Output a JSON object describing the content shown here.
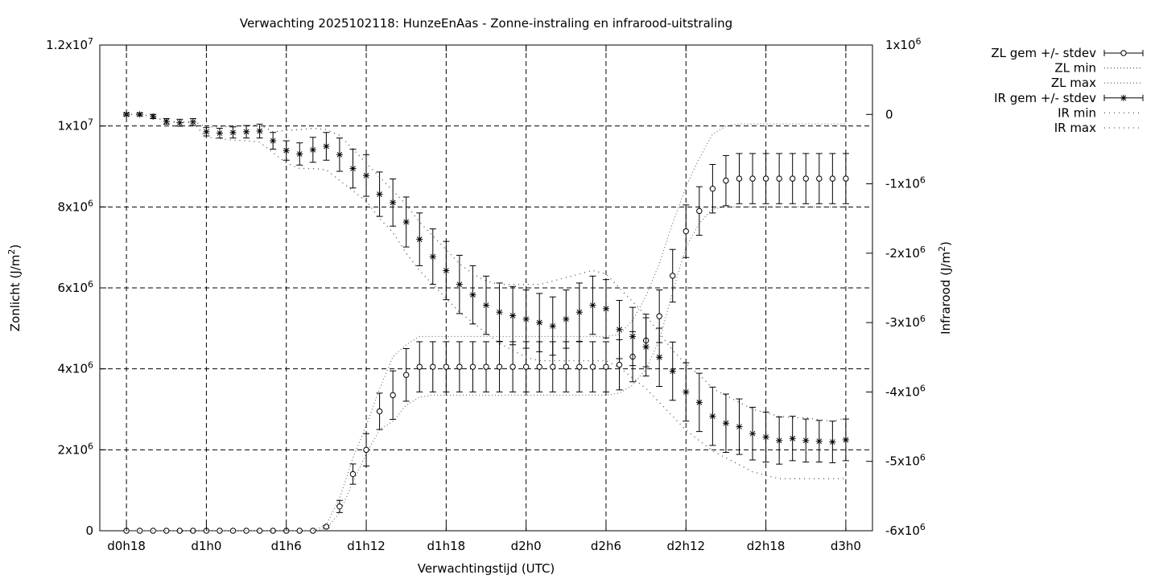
{
  "chart_data": {
    "type": "line",
    "title": "Verwachting 2025102118: HunzeEnAas - Zonne-instraling en infrarood-uitstraling",
    "xlabel": "Verwachtingstijd (UTC)",
    "ylabel_left": {
      "base": "Zonlicht (J/m",
      "sup": "2",
      "tail": ")"
    },
    "ylabel_right": {
      "base": "Infrarood (J/m",
      "sup": "2",
      "tail": ")"
    },
    "x_tick_labels": [
      "d0h18",
      "d1h0",
      "d1h6",
      "d1h12",
      "d1h18",
      "d2h0",
      "d2h6",
      "d2h12",
      "d2h18",
      "d3h0"
    ],
    "x_tick_hours": [
      18,
      24,
      30,
      36,
      42,
      48,
      54,
      60,
      66,
      72
    ],
    "xlim_hours": [
      16,
      74
    ],
    "ylim_left": [
      0,
      12000000
    ],
    "ylim_right": [
      -6000000,
      1000000
    ],
    "y_left_ticks": [
      {
        "value": 0,
        "base": "0",
        "sup": ""
      },
      {
        "value": 2000000,
        "base": "2x10",
        "sup": "6"
      },
      {
        "value": 4000000,
        "base": "4x10",
        "sup": "6"
      },
      {
        "value": 6000000,
        "base": "6x10",
        "sup": "6"
      },
      {
        "value": 8000000,
        "base": "8x10",
        "sup": "6"
      },
      {
        "value": 10000000,
        "base": "1x10",
        "sup": "7"
      },
      {
        "value": 12000000,
        "base": "1.2x10",
        "sup": "7"
      }
    ],
    "y_right_ticks": [
      {
        "value": 1000000,
        "base": "1x10",
        "sup": "6"
      },
      {
        "value": 0,
        "base": "0",
        "sup": ""
      },
      {
        "value": -1000000,
        "base": "-1x10",
        "sup": "6"
      },
      {
        "value": -2000000,
        "base": "-2x10",
        "sup": "6"
      },
      {
        "value": -3000000,
        "base": "-3x10",
        "sup": "6"
      },
      {
        "value": -4000000,
        "base": "-4x10",
        "sup": "6"
      },
      {
        "value": -5000000,
        "base": "-5x10",
        "sup": "6"
      },
      {
        "value": -6000000,
        "base": "-6x10",
        "sup": "6"
      }
    ],
    "grid": true,
    "legend_position": "outside-top-right",
    "x_hours": [
      18,
      19,
      20,
      21,
      22,
      23,
      24,
      25,
      26,
      27,
      28,
      29,
      30,
      31,
      32,
      33,
      34,
      35,
      36,
      37,
      38,
      39,
      40,
      41,
      42,
      43,
      44,
      45,
      46,
      47,
      48,
      49,
      50,
      51,
      52,
      53,
      54,
      55,
      56,
      57,
      58,
      59,
      60,
      61,
      62,
      63,
      64,
      65,
      66,
      67,
      68,
      69,
      70,
      71,
      72
    ],
    "series": [
      {
        "name": "ZL gem +/- stdev",
        "axis": "left",
        "marker": "circle",
        "values": [
          0,
          0,
          0,
          0,
          0,
          0,
          0,
          0,
          0,
          0,
          0,
          0,
          0,
          0,
          0,
          100000,
          600000,
          1400000,
          2000000,
          2950000,
          3350000,
          3850000,
          4050000,
          4050000,
          4050000,
          4050000,
          4050000,
          4050000,
          4050000,
          4050000,
          4050000,
          4050000,
          4050000,
          4050000,
          4050000,
          4050000,
          4050000,
          4100000,
          4300000,
          4700000,
          5300000,
          6300000,
          7400000,
          7900000,
          8450000,
          8650000,
          8700000,
          8700000,
          8700000,
          8700000,
          8700000,
          8700000,
          8700000,
          8700000,
          8700000
        ],
        "stdev": [
          0,
          0,
          0,
          0,
          0,
          0,
          0,
          0,
          0,
          0,
          0,
          0,
          0,
          0,
          0,
          30000,
          150000,
          250000,
          400000,
          450000,
          600000,
          650000,
          620000,
          620000,
          620000,
          620000,
          620000,
          620000,
          620000,
          620000,
          620000,
          620000,
          620000,
          620000,
          620000,
          620000,
          620000,
          620000,
          620000,
          650000,
          650000,
          650000,
          650000,
          600000,
          600000,
          620000,
          620000,
          620000,
          620000,
          620000,
          620000,
          620000,
          620000,
          620000,
          620000
        ]
      },
      {
        "name": "ZL min",
        "axis": "left",
        "values": [
          0,
          0,
          0,
          0,
          0,
          0,
          0,
          0,
          0,
          0,
          0,
          0,
          0,
          0,
          0,
          50000,
          450000,
          1200000,
          1900000,
          2500000,
          2700000,
          3100000,
          3300000,
          3350000,
          3350000,
          3350000,
          3350000,
          3350000,
          3350000,
          3350000,
          3350000,
          3350000,
          3350000,
          3350000,
          3350000,
          3350000,
          3350000,
          3400000,
          3600000,
          4000000,
          4700000,
          5900000,
          7000000,
          7600000,
          7950000,
          8000000,
          8000000,
          8000000,
          8000000,
          8000000,
          8000000,
          8000000,
          8000000,
          8000000,
          8000000
        ]
      },
      {
        "name": "ZL max",
        "axis": "left",
        "values": [
          0,
          0,
          0,
          0,
          0,
          0,
          0,
          0,
          0,
          0,
          0,
          0,
          0,
          0,
          0,
          150000,
          800000,
          1800000,
          2600000,
          3500000,
          4300000,
          4600000,
          4800000,
          4800000,
          4800000,
          4800000,
          4800000,
          4800000,
          4800000,
          4800000,
          4800000,
          4800000,
          4800000,
          4800000,
          4800000,
          4800000,
          4800000,
          4850000,
          5200000,
          5800000,
          6600000,
          7600000,
          8500000,
          9200000,
          9800000,
          10000000,
          10050000,
          10050000,
          10050000,
          10050000,
          10050000,
          10050000,
          10050000,
          10050000,
          10050000
        ]
      },
      {
        "name": "IR gem +/- stdev",
        "axis": "right",
        "marker": "star",
        "values": [
          0,
          0,
          -30000,
          -100000,
          -120000,
          -110000,
          -250000,
          -270000,
          -260000,
          -250000,
          -240000,
          -380000,
          -520000,
          -570000,
          -510000,
          -460000,
          -580000,
          -780000,
          -880000,
          -1150000,
          -1270000,
          -1550000,
          -1800000,
          -2050000,
          -2250000,
          -2450000,
          -2600000,
          -2750000,
          -2850000,
          -2900000,
          -2950000,
          -3000000,
          -3050000,
          -2950000,
          -2850000,
          -2750000,
          -2800000,
          -3100000,
          -3200000,
          -3350000,
          -3500000,
          -3700000,
          -4000000,
          -4150000,
          -4350000,
          -4450000,
          -4500000,
          -4600000,
          -4650000,
          -4700000,
          -4670000,
          -4700000,
          -4710000,
          -4720000,
          -4690000
        ],
        "stdev": [
          20000,
          20000,
          30000,
          40000,
          50000,
          50000,
          60000,
          70000,
          80000,
          90000,
          100000,
          120000,
          140000,
          160000,
          180000,
          200000,
          240000,
          280000,
          300000,
          320000,
          340000,
          360000,
          380000,
          400000,
          420000,
          420000,
          420000,
          420000,
          420000,
          420000,
          420000,
          420000,
          420000,
          420000,
          420000,
          420000,
          420000,
          420000,
          420000,
          420000,
          420000,
          420000,
          420000,
          420000,
          420000,
          420000,
          400000,
          380000,
          360000,
          340000,
          320000,
          310000,
          300000,
          300000,
          300000
        ]
      },
      {
        "name": "IR min",
        "axis": "right",
        "values": [
          0,
          0,
          -30000,
          -100000,
          -120000,
          -120000,
          -330000,
          -350000,
          -370000,
          -380000,
          -400000,
          -550000,
          -700000,
          -780000,
          -780000,
          -800000,
          -950000,
          -1100000,
          -1250000,
          -1500000,
          -1700000,
          -2000000,
          -2250000,
          -2450000,
          -2650000,
          -2850000,
          -3000000,
          -3150000,
          -3300000,
          -3400000,
          -3500000,
          -3550000,
          -3550000,
          -3550000,
          -3550000,
          -3550000,
          -3550000,
          -3650000,
          -3800000,
          -3950000,
          -4150000,
          -4350000,
          -4550000,
          -4700000,
          -4850000,
          -4950000,
          -5050000,
          -5150000,
          -5200000,
          -5250000,
          -5250000,
          -5250000,
          -5250000,
          -5250000,
          -5250000
        ]
      },
      {
        "name": "IR max",
        "axis": "right",
        "values": [
          0,
          0,
          -30000,
          -100000,
          -110000,
          -100000,
          -180000,
          -180000,
          -170000,
          -160000,
          -150000,
          -250000,
          -230000,
          -220000,
          -200000,
          -220000,
          -300000,
          -500000,
          -700000,
          -900000,
          -1100000,
          -1300000,
          -1550000,
          -1750000,
          -1950000,
          -2150000,
          -2300000,
          -2400000,
          -2450000,
          -2450000,
          -2450000,
          -2450000,
          -2400000,
          -2350000,
          -2300000,
          -2250000,
          -2300000,
          -2500000,
          -2700000,
          -2900000,
          -3150000,
          -3400000,
          -3600000,
          -3750000,
          -3950000,
          -4050000,
          -4150000,
          -4250000,
          -4300000,
          -4350000,
          -4370000,
          -4370000,
          -4400000,
          -4420000,
          -4380000
        ]
      }
    ]
  }
}
